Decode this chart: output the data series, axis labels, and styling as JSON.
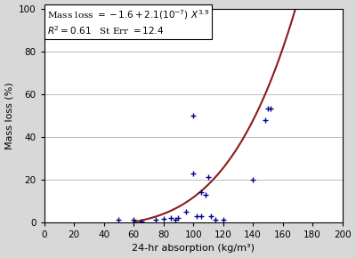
{
  "title": "",
  "xlabel": "24-hr absorption (kg/m³)",
  "ylabel": "Mass loss (%)",
  "xlim": [
    0,
    200
  ],
  "ylim": [
    0,
    100
  ],
  "xticks": [
    0,
    20,
    40,
    60,
    80,
    100,
    120,
    140,
    160,
    180,
    200
  ],
  "yticks": [
    0,
    20,
    40,
    60,
    80,
    100
  ],
  "scatter_x": [
    50,
    60,
    65,
    75,
    80,
    85,
    88,
    90,
    95,
    100,
    100,
    102,
    105,
    105,
    108,
    110,
    112,
    115,
    120,
    140,
    148,
    150,
    152
  ],
  "scatter_y": [
    1,
    1,
    0.5,
    1,
    1.5,
    2,
    1,
    2,
    5,
    50,
    23,
    3,
    14,
    3,
    13,
    21,
    3,
    1,
    1,
    20,
    48,
    53,
    53
  ],
  "curve_a": -1.6,
  "curve_b": 2.1e-07,
  "curve_exp": 3.9,
  "scatter_color": "#00008B",
  "curve_color": "#8B1A1A",
  "background_color": "#d8d8d8",
  "plot_bg_color": "#ffffff",
  "marker_size": 5,
  "marker_linewidth": 1.0,
  "box_facecolor": "#ffffff",
  "box_edgecolor": "#000000",
  "grid_color": "#bbbbbb",
  "annotation_fontsize": 7.5
}
